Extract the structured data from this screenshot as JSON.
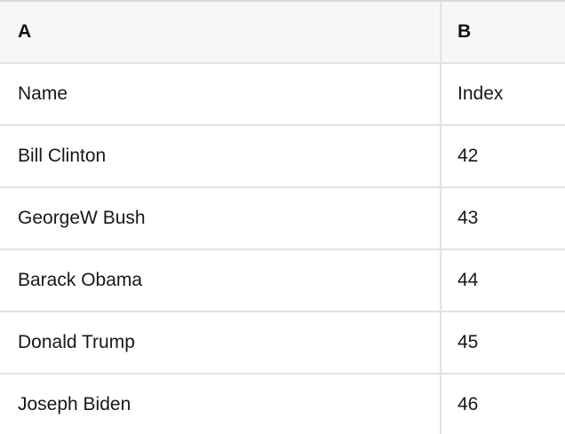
{
  "table": {
    "header": {
      "col_a": "A",
      "col_b": "B"
    },
    "rows": [
      {
        "name": "Name",
        "index": "Index"
      },
      {
        "name": "Bill Clinton",
        "index": "42"
      },
      {
        "name": "GeorgeW Bush",
        "index": "43"
      },
      {
        "name": "Barack Obama",
        "index": "44"
      },
      {
        "name": "Donald Trump",
        "index": "45"
      },
      {
        "name": "Joseph Biden",
        "index": "46"
      }
    ]
  },
  "theme": {
    "header_background": "#f7f7f7",
    "row_background": "#ffffff",
    "border_color": "#e2e2e2",
    "top_border_color": "#d8d8d8",
    "text_color": "#171717",
    "header_text_color": "#111111"
  }
}
